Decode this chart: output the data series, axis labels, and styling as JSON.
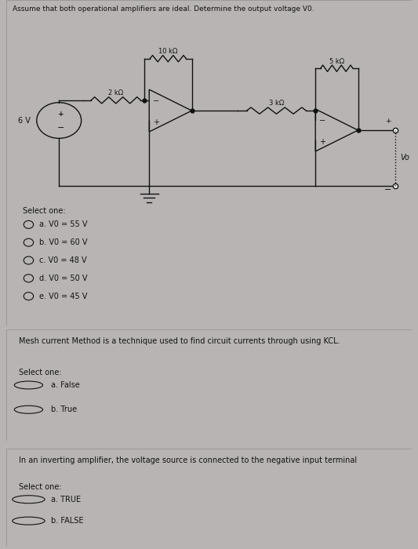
{
  "bg_color": "#b8b4b4",
  "panel1_bg": "#dddada",
  "panel2_bg": "#dddada",
  "panel3_bg": "#dddada",
  "title_text": "Assume that both operational amplifiers are ideal. Determine the output voltage V0.",
  "circuit_label_10k": "10 kΩ",
  "circuit_label_5k": "5 kΩ",
  "circuit_label_2k": "2 kΩ",
  "circuit_label_3k": "3 kΩ",
  "circuit_label_6v": "6 V",
  "circuit_label_vo": "Vo",
  "select_one": "Select one:",
  "q1_options": [
    "a. V0 = 55 V",
    "b. V0 = 60 V",
    "c. V0 = 48 V",
    "d. V0 = 50 V",
    "e. V0 = 45 V"
  ],
  "q2_text": "Mesh current Method is a technique used to find circuit currents through using KCL.",
  "q2_select": "Select one:",
  "q2_options": [
    "a. False",
    "b. True"
  ],
  "q3_text": "In an inverting amplifier, the voltage source is connected to the negative input terminal",
  "q3_select": "Select one:",
  "q3_options": [
    "a. TRUE",
    "b. FALSE"
  ],
  "font_size_title": 6.5,
  "font_size_body": 7,
  "font_size_small": 6,
  "line_color": "#111111"
}
